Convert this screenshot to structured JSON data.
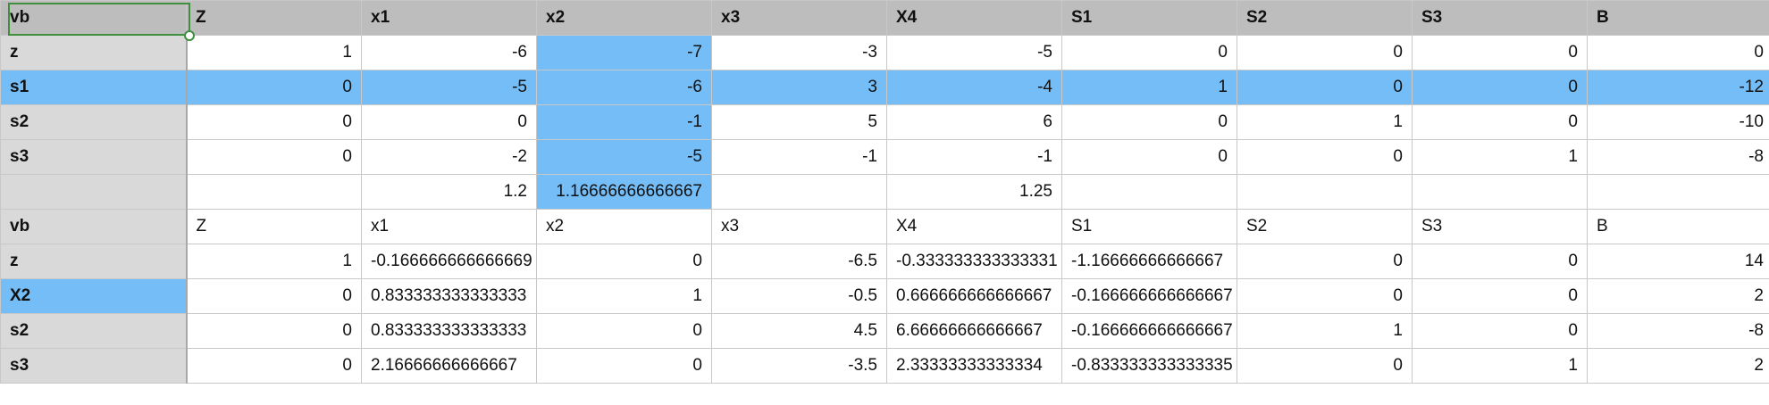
{
  "grid": {
    "header": [
      "vb",
      "Z",
      "x1",
      "x2",
      "x3",
      "X4",
      "S1",
      "S2",
      "S3",
      "B"
    ],
    "rows": [
      [
        "z",
        "1",
        "-6",
        "-7",
        "-3",
        "-5",
        "0",
        "0",
        "0",
        "0"
      ],
      [
        "s1",
        "0",
        "-5",
        "-6",
        "3",
        "-4",
        "1",
        "0",
        "0",
        "-12"
      ],
      [
        "s2",
        "0",
        "0",
        "-1",
        "5",
        "6",
        "0",
        "1",
        "0",
        "-10"
      ],
      [
        "s3",
        "0",
        "-2",
        "-5",
        "-1",
        "-1",
        "0",
        "0",
        "1",
        "-8"
      ],
      [
        "",
        "",
        "1.2",
        "1.16666666666667",
        "",
        "1.25",
        "",
        "",
        "",
        ""
      ],
      [
        "vb",
        "Z",
        "x1",
        "x2",
        "x3",
        "X4",
        "S1",
        "S2",
        "S3",
        "B"
      ],
      [
        "z",
        "1",
        "-0.166666666666669",
        "0",
        "-6.5",
        "-0.333333333333331",
        "-1.16666666666667",
        "0",
        "0",
        "14"
      ],
      [
        "X2",
        "0",
        "0.833333333333333",
        "1",
        "-0.5",
        "0.666666666666667",
        "-0.166666666666667",
        "0",
        "0",
        "2"
      ],
      [
        "s2",
        "0",
        "0.833333333333333",
        "0",
        "4.5",
        "6.66666666666667",
        "-0.166666666666667",
        "1",
        "0",
        "-8"
      ],
      [
        "s3",
        "0",
        "2.16666666666667",
        "0",
        "-3.5",
        "2.33333333333334",
        "-0.833333333333335",
        "0",
        "1",
        "2"
      ]
    ]
  },
  "colors": {
    "header_bg": "#bdbdbd",
    "rowlabel_bg": "#d9d9d9",
    "selection": "#74bdf7",
    "active_border": "#3f8f3f",
    "gridline": "#c8c8c8"
  }
}
